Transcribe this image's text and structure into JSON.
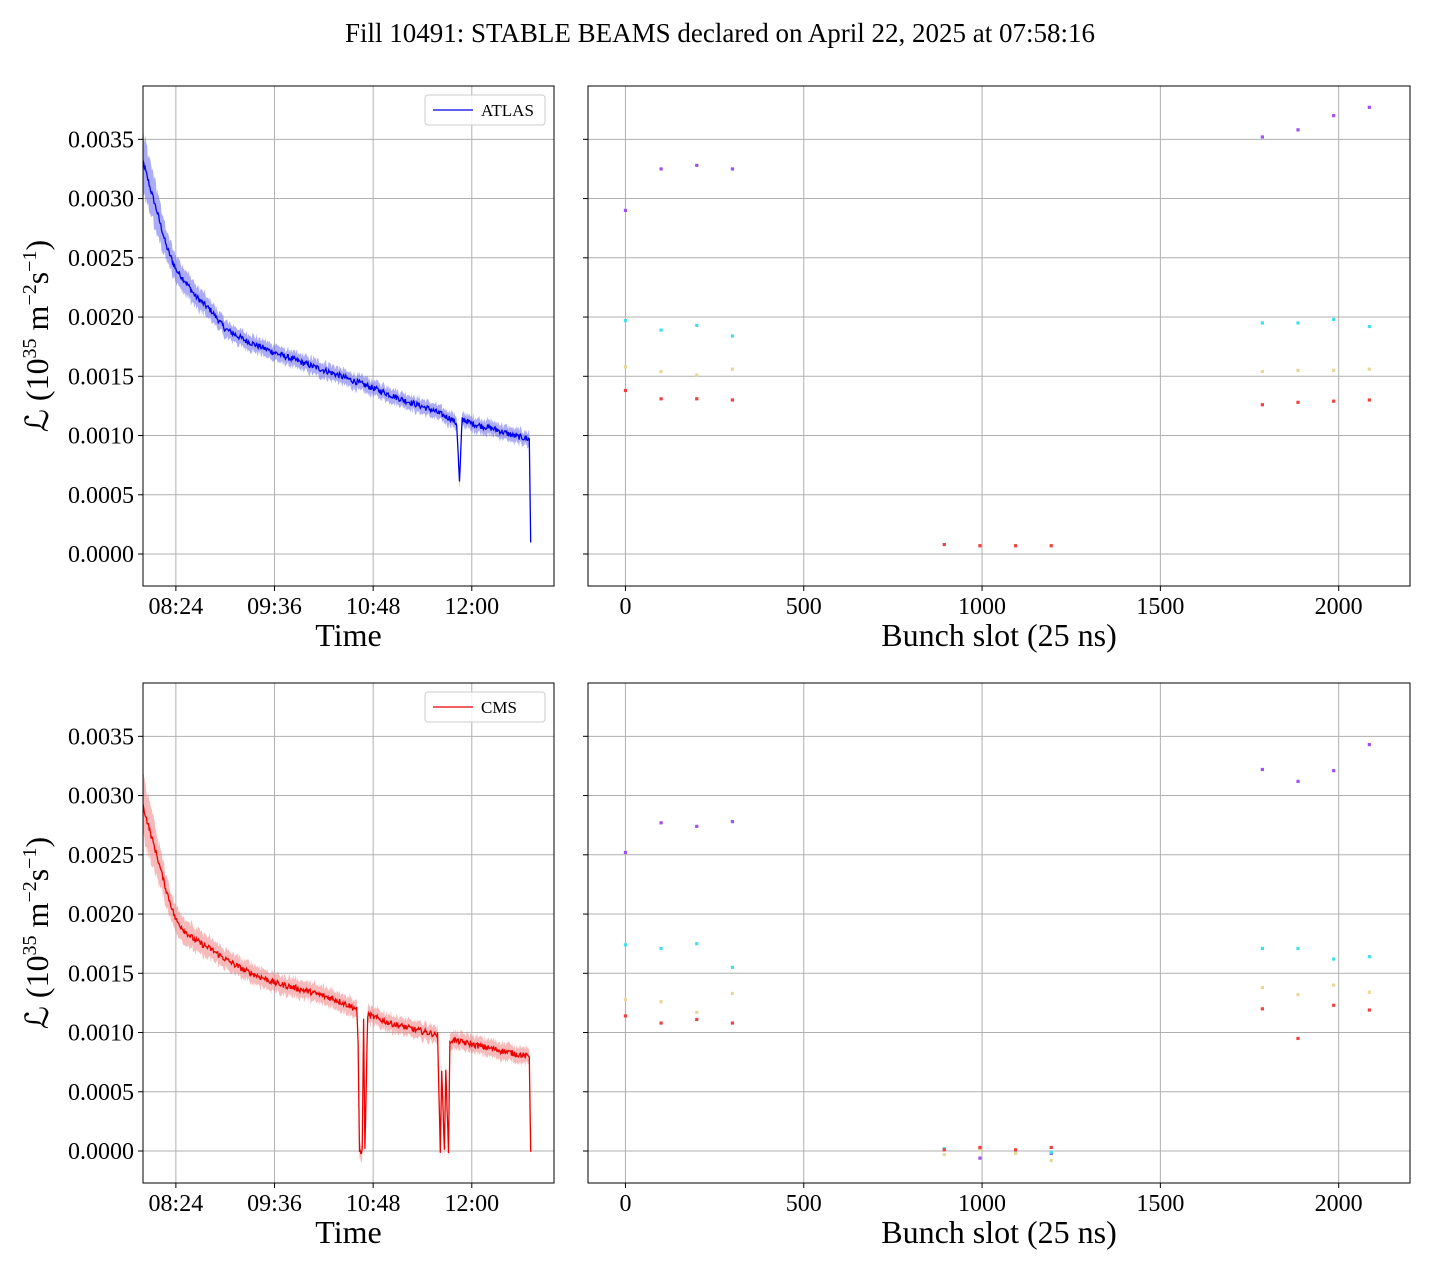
{
  "figure": {
    "title": "Fill 10491: STABLE BEAMS declared on April 22, 2025 at 07:58:16"
  },
  "chart_data": [
    {
      "panel": "top-left",
      "type": "line",
      "title": "",
      "xlabel": "Time",
      "ylabel": "ℒ (10^35 m^-2 s^-1)",
      "ylabel_base": "ℒ (10",
      "ylabel_exp1": "35",
      "ylabel_mid": " m",
      "ylabel_exp2": "−2",
      "ylabel_mid2": "s",
      "ylabel_exp3": "−1",
      "ylabel_end": ")",
      "xlim": [
        "08:00",
        "13:00"
      ],
      "ylim": [
        -0.00027,
        0.00395
      ],
      "xticks": [
        "08:24",
        "09:36",
        "10:48",
        "12:00"
      ],
      "yticks": [
        "0.0000",
        "0.0005",
        "0.0010",
        "0.0015",
        "0.0020",
        "0.0025",
        "0.0030",
        "0.0035"
      ],
      "grid": true,
      "legend": {
        "placement": "top-right",
        "entries": [
          "ATLAS"
        ]
      },
      "series": [
        {
          "name": "ATLAS",
          "color": "#0000ee",
          "band_color": "#6666ee",
          "band_halfwidth": [
            0.00027,
            0.00012,
            7e-05,
            6e-05
          ],
          "x": [
            "07:58",
            "08:05",
            "08:10",
            "08:17",
            "08:24",
            "08:31",
            "08:38",
            "08:50",
            "09:00",
            "09:15",
            "09:36",
            "10:00",
            "10:20",
            "10:48",
            "11:10",
            "11:30",
            "11:45",
            "11:49",
            "11:51",
            "11:53",
            "12:00",
            "12:15",
            "12:30",
            "12:42",
            "12:43"
          ],
          "y": [
            0.0034,
            0.0031,
            0.0029,
            0.0026,
            0.0024,
            0.0023,
            0.00218,
            0.00205,
            0.0019,
            0.0018,
            0.0017,
            0.0016,
            0.00152,
            0.0014,
            0.0013,
            0.00122,
            0.00114,
            0.0011,
            0.0006,
            0.00114,
            0.0011,
            0.00106,
            0.001,
            0.00097,
            0.0001
          ]
        }
      ]
    },
    {
      "panel": "top-right",
      "type": "scatter",
      "title": "",
      "xlabel": "Bunch slot (25 ns)",
      "ylabel": "",
      "xlim": [
        -105,
        2200
      ],
      "ylim": [
        -0.00027,
        0.00395
      ],
      "xticks": [
        "0",
        "500",
        "1000",
        "1500",
        "2000"
      ],
      "grid": true,
      "series": [
        {
          "color": "#a050f0",
          "x": [
            0,
            100,
            200,
            300,
            1786,
            1886,
            1986,
            2086
          ],
          "y": [
            0.0029,
            0.00325,
            0.00328,
            0.00325,
            0.00352,
            0.00358,
            0.0037,
            0.00377
          ]
        },
        {
          "color": "#40e0e8",
          "x": [
            0,
            100,
            200,
            300,
            1786,
            1886,
            1986,
            2086
          ],
          "y": [
            0.00197,
            0.00189,
            0.00193,
            0.00184,
            0.00195,
            0.00195,
            0.00198,
            0.00192
          ]
        },
        {
          "color": "#e8d898",
          "x": [
            0,
            100,
            200,
            300,
            1786,
            1886,
            1986,
            2086
          ],
          "y": [
            0.00158,
            0.00154,
            0.00151,
            0.00156,
            0.00154,
            0.00155,
            0.00155,
            0.00156
          ]
        },
        {
          "color": "#f04040",
          "x": [
            0,
            100,
            200,
            300,
            1786,
            1886,
            1986,
            2086,
            894,
            994,
            1094,
            1194
          ],
          "y": [
            0.00138,
            0.00131,
            0.00131,
            0.0013,
            0.00126,
            0.00128,
            0.00129,
            0.0013,
            8e-05,
            7e-05,
            7e-05,
            7e-05
          ]
        }
      ]
    },
    {
      "panel": "bottom-left",
      "type": "line",
      "title": "",
      "xlabel": "Time",
      "ylabel": "ℒ (10^35 m^-2 s^-1)",
      "xlim": [
        "08:00",
        "13:00"
      ],
      "ylim": [
        -0.00027,
        0.00395
      ],
      "xticks": [
        "08:24",
        "09:36",
        "10:48",
        "12:00"
      ],
      "yticks": [
        "0.0000",
        "0.0005",
        "0.0010",
        "0.0015",
        "0.0020",
        "0.0025",
        "0.0030",
        "0.0035"
      ],
      "grid": true,
      "legend": {
        "placement": "top-right",
        "entries": [
          "CMS"
        ]
      },
      "series": [
        {
          "name": "CMS",
          "color": "#ee0000",
          "band_color": "#f08080",
          "band_halfwidth": [
            0.00028,
            0.00012,
            8e-05,
            7e-05
          ],
          "x": [
            "07:58",
            "08:05",
            "08:10",
            "08:17",
            "08:24",
            "08:31",
            "08:38",
            "08:50",
            "09:00",
            "09:15",
            "09:36",
            "10:00",
            "10:20",
            "10:36",
            "10:37",
            "10:38",
            "10:40",
            "10:41",
            "10:42",
            "10:44",
            "11:00",
            "11:20",
            "11:35",
            "11:37",
            "11:38",
            "11:40",
            "11:41",
            "11:43",
            "11:44",
            "11:45",
            "12:00",
            "12:20",
            "12:40",
            "12:42",
            "12:43"
          ],
          "y": [
            0.003,
            0.0027,
            0.0025,
            0.0022,
            0.00195,
            0.00185,
            0.00178,
            0.0017,
            0.00162,
            0.00152,
            0.00142,
            0.00135,
            0.00128,
            0.0012,
            0.0009,
            0.0,
            0.0,
            0.0011,
            0.0,
            0.00115,
            0.00108,
            0.00102,
            0.00098,
            0.0,
            0.0007,
            0.0,
            0.0007,
            0.0,
            0.0009,
            0.00094,
            0.0009,
            0.00085,
            0.0008,
            0.0008,
            0.0
          ]
        }
      ]
    },
    {
      "panel": "bottom-right",
      "type": "scatter",
      "title": "",
      "xlabel": "Bunch slot (25 ns)",
      "ylabel": "",
      "xlim": [
        -105,
        2200
      ],
      "ylim": [
        -0.00027,
        0.00395
      ],
      "xticks": [
        "0",
        "500",
        "1000",
        "1500",
        "2000"
      ],
      "grid": true,
      "series": [
        {
          "color": "#a050f0",
          "x": [
            0,
            100,
            200,
            300,
            1786,
            1886,
            1986,
            2086,
            994,
            1194
          ],
          "y": [
            0.00252,
            0.00277,
            0.00274,
            0.00278,
            0.00322,
            0.00312,
            0.00321,
            0.00343,
            -6e-05,
            -2e-05
          ]
        },
        {
          "color": "#40e0e8",
          "x": [
            0,
            100,
            200,
            300,
            1786,
            1886,
            1986,
            2086,
            894,
            994,
            1094,
            1194
          ],
          "y": [
            0.00174,
            0.00171,
            0.00175,
            0.00155,
            0.00171,
            0.00171,
            0.00162,
            0.00164,
            2e-05,
            1e-05,
            -1e-05,
            -1e-05
          ]
        },
        {
          "color": "#e8d898",
          "x": [
            0,
            100,
            200,
            300,
            1786,
            1886,
            1986,
            2086,
            894,
            994,
            1094,
            1194
          ],
          "y": [
            0.00128,
            0.00126,
            0.00117,
            0.00133,
            0.00138,
            0.00132,
            0.0014,
            0.00134,
            -3e-05,
            1e-05,
            -2e-05,
            -8e-05
          ]
        },
        {
          "color": "#f04040",
          "x": [
            0,
            100,
            200,
            300,
            1786,
            1886,
            1986,
            2086,
            894,
            994,
            1094,
            1194
          ],
          "y": [
            0.00114,
            0.00108,
            0.00111,
            0.00108,
            0.0012,
            0.00095,
            0.00123,
            0.00119,
            1e-05,
            3e-05,
            1e-05,
            3e-05
          ]
        }
      ]
    }
  ]
}
